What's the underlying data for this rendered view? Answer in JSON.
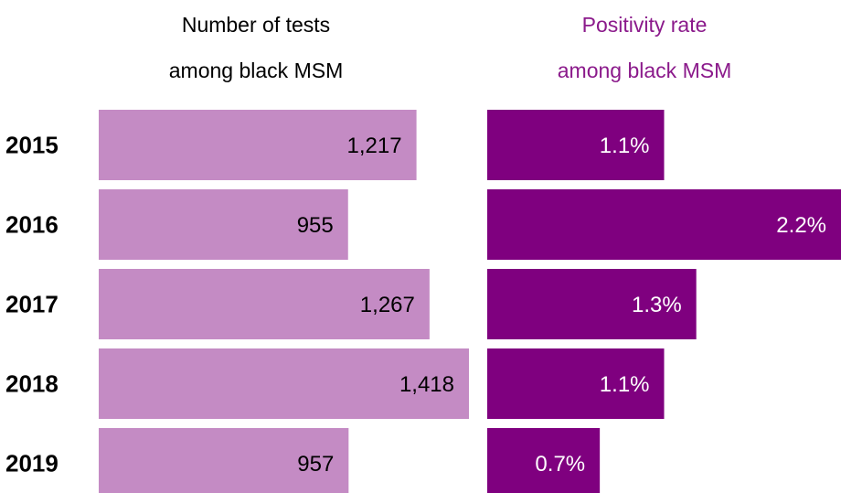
{
  "chart_data": {
    "type": "bar",
    "orientation": "horizontal",
    "categories": [
      "2015",
      "2016",
      "2017",
      "2018",
      "2019"
    ],
    "series": [
      {
        "name": "Number of tests\namong black MSM",
        "color": "#c48bc4",
        "title_color": "#000000",
        "label_color": "#000000",
        "values": [
          1217,
          955,
          1267,
          1418,
          957
        ],
        "value_labels": [
          "1,217",
          "955",
          "1,267",
          "1,418",
          "957"
        ]
      },
      {
        "name": "Positivity rate\namong black MSM",
        "color": "#7f007f",
        "title_color": "#8b1a8b",
        "label_color": "#ffffff",
        "values": [
          1.1,
          2.2,
          1.3,
          1.1,
          0.7
        ],
        "value_labels": [
          "1.1%",
          "2.2%",
          "1.3%",
          "1.1%",
          "0.7%"
        ]
      }
    ]
  }
}
